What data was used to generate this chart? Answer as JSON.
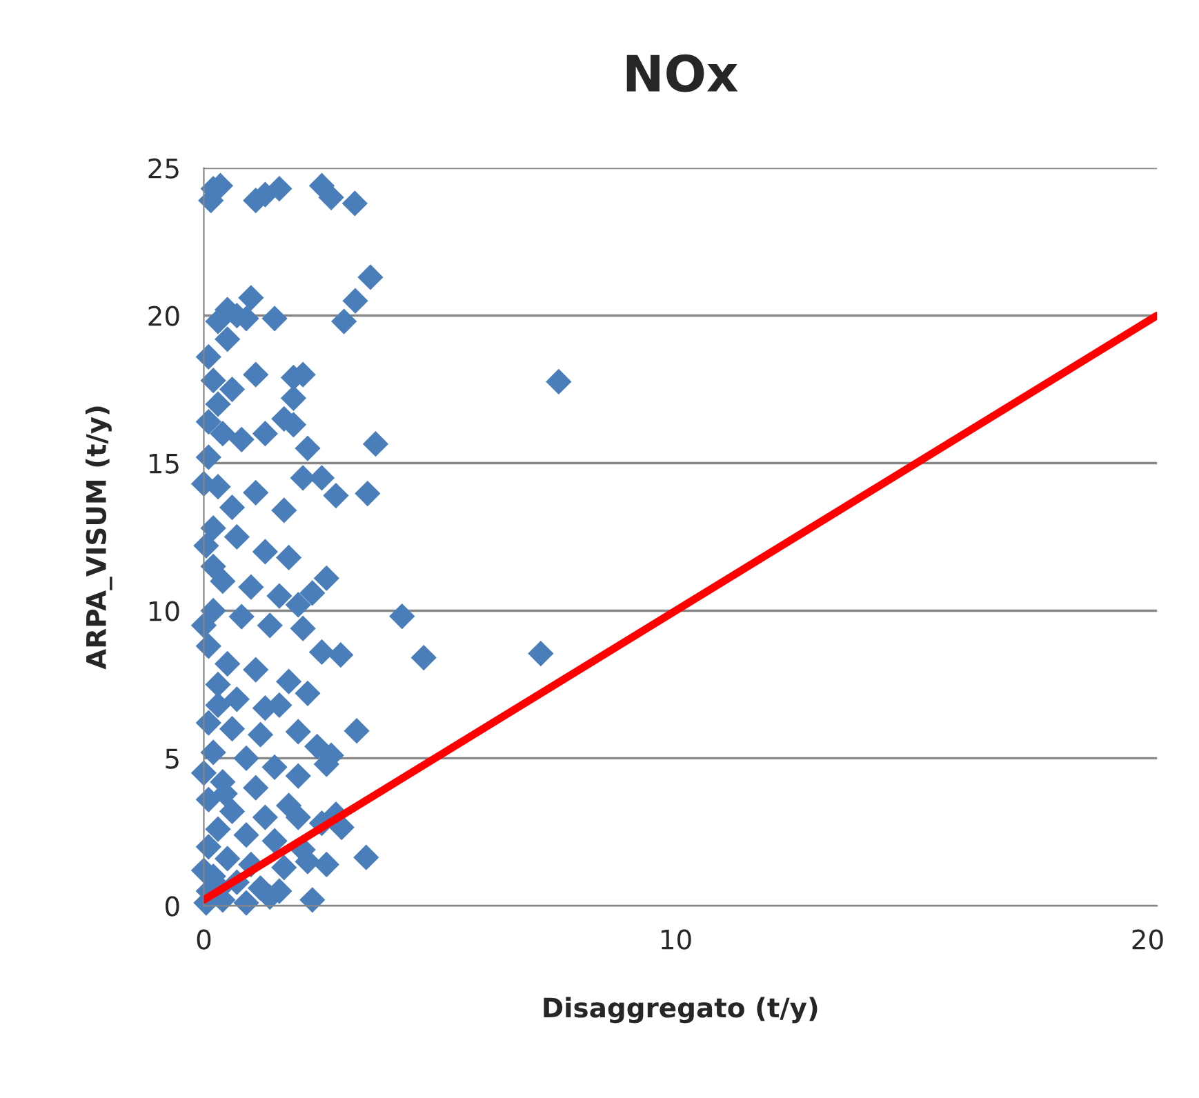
{
  "chart_data": {
    "type": "scatter",
    "title": "NOx",
    "xlabel": "Disaggregato (t/y)",
    "ylabel": "ARPA_VISUM (t/y)",
    "xlim": [
      0,
      20.2
    ],
    "ylim": [
      0,
      25
    ],
    "xticks": [
      0,
      10,
      20
    ],
    "yticks": [
      0,
      5,
      10,
      15,
      20,
      25
    ],
    "grid": "y",
    "legend": false,
    "series": [
      {
        "marker": "diamond",
        "color": "#4a7ebb",
        "x": [
          7.52,
          7.14,
          4.66,
          4.2,
          3.53,
          3.21,
          2.97,
          3.64,
          3.47,
          3.24,
          3.44,
          2.92,
          0.15,
          0.2,
          0.35,
          1.1,
          1.3,
          1.6,
          2.5,
          2.7,
          3.2,
          0.1,
          0.3,
          0.5,
          0.7,
          0.9,
          1.0,
          1.5,
          0.5,
          0.2,
          0.6,
          1.1,
          1.9,
          2.1,
          1.9,
          0.3,
          0.1,
          0.4,
          0.8,
          1.3,
          1.7,
          1.9,
          2.2,
          2.1,
          2.5,
          2.8,
          1.7,
          0.3,
          0.6,
          1.1,
          0.2,
          0.7,
          1.3,
          1.8,
          0.4,
          1.0,
          1.6,
          2.0,
          2.3,
          2.6,
          0.2,
          0.8,
          1.4,
          2.1,
          2.5,
          2.9,
          0.1,
          0.5,
          1.1,
          1.8,
          2.2,
          0.3,
          0.7,
          1.3,
          1.6,
          0.1,
          0.6,
          1.2,
          2.0,
          2.4,
          2.7,
          2.6,
          0.2,
          0.9,
          1.5,
          2.0,
          0.4,
          1.1,
          1.8,
          0.1,
          0.6,
          1.3,
          2.0,
          2.5,
          2.8,
          0.3,
          0.9,
          1.5,
          2.1,
          0.1,
          0.5,
          1.0,
          1.7,
          2.2,
          2.6,
          0.2,
          0.7,
          1.2,
          1.6,
          2.3,
          0.1,
          0.4,
          0.9,
          0.05,
          1.4,
          0.0,
          0.0,
          0.0,
          0.0,
          0.05,
          0.1,
          0.2,
          0.3,
          0.45,
          0.35
        ],
        "values": [
          17.76,
          8.55,
          8.41,
          9.81,
          21.3,
          20.5,
          19.8,
          15.65,
          13.97,
          5.93,
          1.64,
          2.66,
          23.9,
          24.3,
          24.4,
          23.9,
          24.1,
          24.3,
          24.4,
          24.0,
          23.8,
          18.6,
          19.8,
          20.2,
          20.0,
          19.9,
          20.6,
          19.9,
          19.2,
          17.8,
          17.5,
          18.0,
          17.9,
          18.0,
          17.2,
          17.0,
          16.4,
          16.0,
          15.8,
          16.0,
          16.5,
          16.3,
          15.5,
          14.5,
          14.5,
          13.9,
          13.4,
          14.2,
          13.5,
          14.0,
          12.8,
          12.5,
          12.0,
          11.8,
          11.0,
          10.8,
          10.5,
          10.2,
          10.6,
          11.1,
          10.0,
          9.8,
          9.5,
          9.4,
          8.6,
          8.5,
          8.8,
          8.2,
          8.0,
          7.6,
          7.2,
          7.5,
          7.0,
          6.7,
          6.8,
          6.2,
          6.0,
          5.8,
          5.9,
          5.4,
          5.1,
          4.8,
          5.2,
          5.0,
          4.7,
          4.4,
          4.2,
          4.0,
          3.4,
          3.6,
          3.2,
          3.0,
          3.0,
          2.8,
          3.1,
          2.6,
          2.4,
          2.2,
          1.9,
          2.0,
          1.6,
          1.4,
          1.3,
          1.5,
          1.4,
          1.0,
          0.8,
          0.6,
          0.5,
          0.2,
          0.5,
          0.2,
          0.1,
          0.1,
          0.3,
          14.3,
          9.5,
          4.5,
          1.2,
          12.2,
          15.2,
          11.5,
          6.8,
          3.8,
          0.6
        ]
      },
      {
        "type": "line",
        "color": "#ff0000",
        "x": [
          0,
          20.2
        ],
        "values": [
          0.2,
          20.0
        ],
        "line_style": "solid",
        "marker": "none"
      }
    ]
  }
}
